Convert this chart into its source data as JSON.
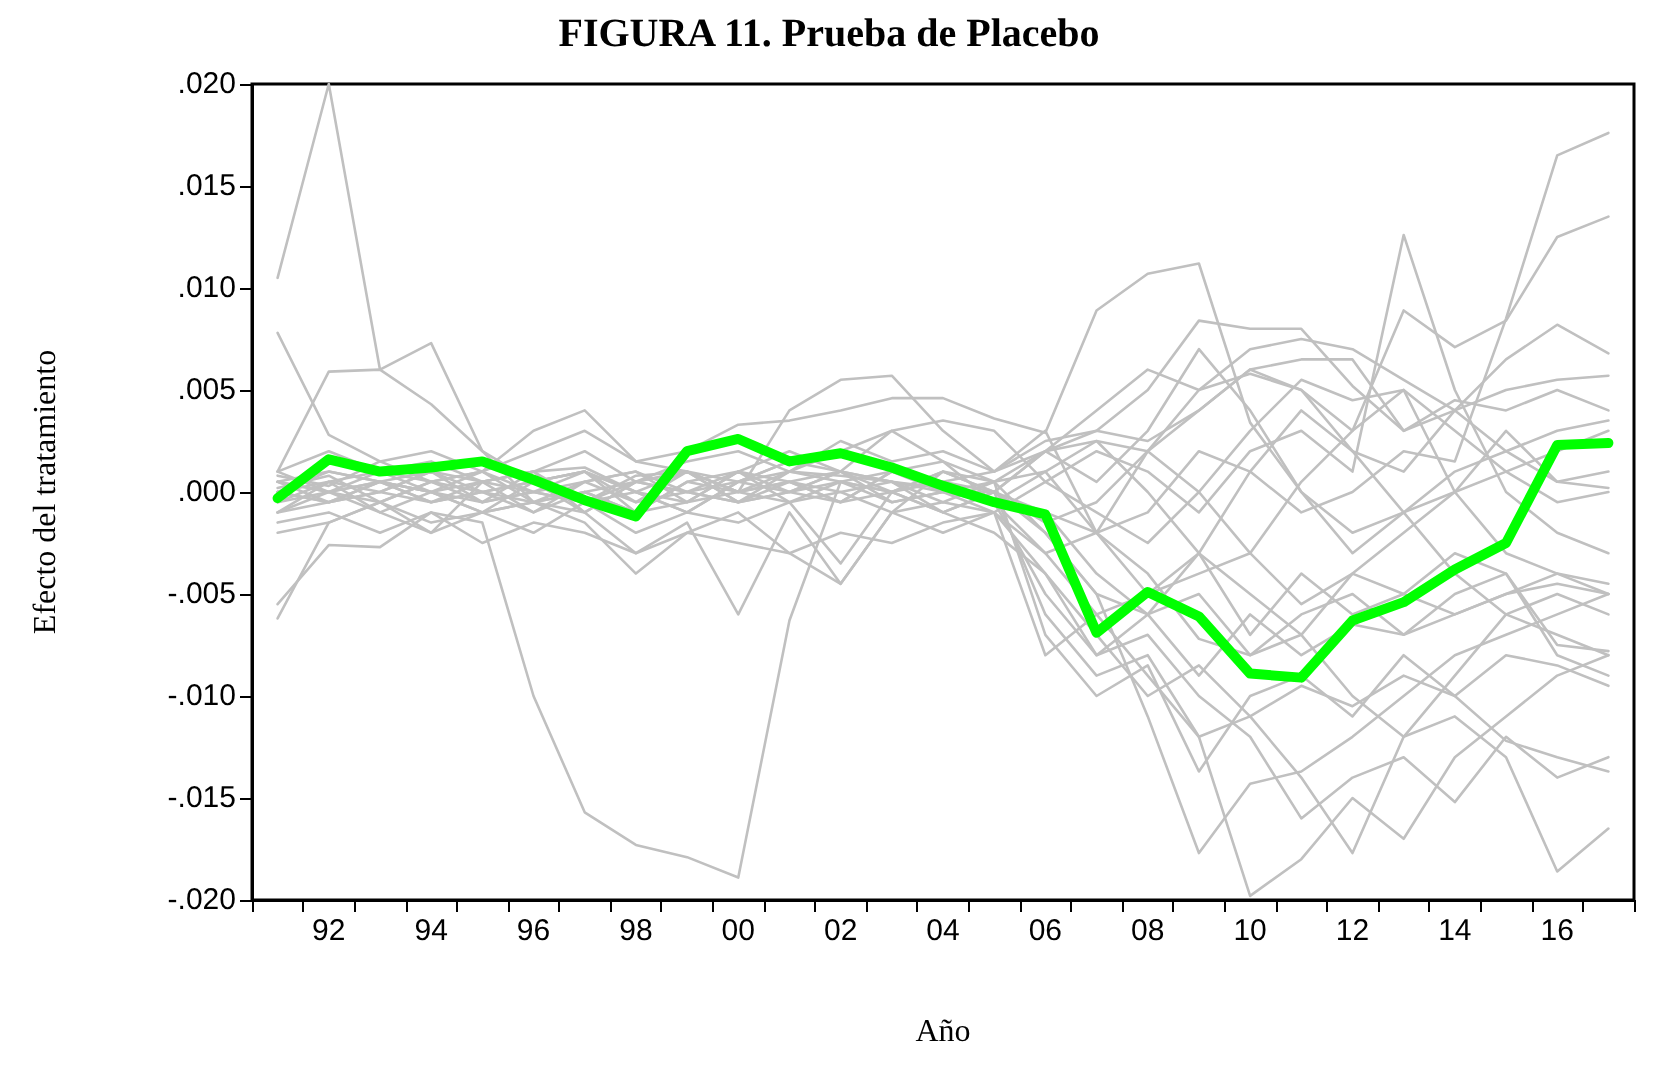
{
  "chart_data": {
    "type": "line",
    "title": "FIGURA 11. Prueba de Placebo",
    "xlabel": "Año",
    "ylabel": "Efecto del tratamiento",
    "categories": [
      null,
      "92",
      null,
      "94",
      null,
      "96",
      null,
      "98",
      null,
      "00",
      null,
      "02",
      null,
      "04",
      null,
      "06",
      null,
      "08",
      null,
      "10",
      null,
      "12",
      null,
      "14",
      null,
      "16",
      null
    ],
    "ylim": [
      -0.02,
      0.02
    ],
    "yticks": [
      {
        "value": -0.02,
        "label": "-.020"
      },
      {
        "value": -0.015,
        "label": "-.015"
      },
      {
        "value": -0.01,
        "label": "-.010"
      },
      {
        "value": -0.005,
        "label": "-.005"
      },
      {
        "value": 0,
        "label": ".000"
      },
      {
        "value": 0.005,
        "label": ".005"
      },
      {
        "value": 0.01,
        "label": ".010"
      },
      {
        "value": 0.015,
        "label": ".015"
      },
      {
        "value": 0.02,
        "label": ".020"
      }
    ],
    "grid": false,
    "marker": "none",
    "line_style": "solid",
    "series": [
      {
        "color": "#c0c0c0",
        "values": [
          0.0105,
          0.02,
          0.006,
          0.0073,
          0.002,
          0.0005,
          0.001,
          -0.0005,
          0.0,
          0.0005,
          0.001,
          0.0008,
          0.0005,
          0.0002,
          -0.0005,
          -0.001,
          -0.002,
          -0.004,
          -0.0072,
          -0.008,
          -0.006,
          -0.005,
          -0.007,
          -0.006,
          -0.005,
          -0.004,
          -0.0045
        ]
      },
      {
        "color": "#c0c0c0",
        "values": [
          0.0078,
          0.0028,
          0.0015,
          0.0005,
          -0.0005,
          0.001,
          0.0012,
          0.0,
          -0.001,
          0.0005,
          0.0015,
          0.001,
          0.003,
          0.0015,
          -0.0005,
          0.001,
          0.0025,
          0.002,
          0.005,
          0.0058,
          0.005,
          0.002,
          0.001,
          0.004,
          0.005,
          0.0055,
          0.0057
        ]
      },
      {
        "color": "#c0c0c0",
        "values": [
          0.001,
          0.0059,
          0.006,
          0.0043,
          0.002,
          -0.0005,
          -0.001,
          0.0005,
          0.001,
          0.0,
          0.004,
          0.0055,
          0.0057,
          0.003,
          0.001,
          0.002,
          0.0005,
          0.003,
          0.007,
          0.004,
          0.0,
          -0.003,
          -0.001,
          -0.004,
          -0.006,
          -0.007,
          -0.008
        ]
      },
      {
        "color": "#c0c0c0",
        "values": [
          -0.0055,
          -0.0026,
          -0.0027,
          -0.001,
          -0.0015,
          -0.01,
          -0.0157,
          -0.0173,
          -0.0179,
          -0.0189,
          -0.0063,
          0.0005,
          0.001,
          0.0015,
          0.0005,
          -0.002,
          -0.005,
          -0.006,
          -0.003,
          -0.005,
          -0.007,
          -0.004,
          -0.002,
          0.0,
          0.001,
          0.002,
          0.003
        ]
      },
      {
        "color": "#c0c0c0",
        "values": [
          -0.0062,
          -0.0015,
          -0.0005,
          -0.002,
          0.0005,
          0.001,
          -0.001,
          -0.003,
          -0.0015,
          -0.006,
          -0.001,
          -0.0045,
          -0.001,
          -0.002,
          -0.001,
          -0.004,
          -0.007,
          -0.01,
          -0.0085,
          -0.011,
          -0.0095,
          -0.0105,
          -0.009,
          -0.01,
          -0.008,
          -0.0085,
          -0.0095
        ]
      },
      {
        "color": "#c0c0c0",
        "values": [
          0.0005,
          0.001,
          0.0005,
          0.0,
          0.001,
          0.002,
          0.003,
          0.0015,
          0.002,
          0.0033,
          0.0035,
          0.004,
          0.0046,
          0.0046,
          0.0036,
          0.0029,
          0.0089,
          0.0107,
          0.0112,
          0.0034,
          0.0,
          -0.002,
          -0.001,
          0.001,
          0.002,
          0.003,
          0.0035
        ]
      },
      {
        "color": "#c0c0c0",
        "values": [
          0.0,
          -0.0005,
          0.0005,
          0.001,
          0.0,
          -0.001,
          0.0005,
          0.001,
          0.0,
          -0.0005,
          0.001,
          0.002,
          0.001,
          0.0005,
          0.0,
          0.002,
          0.003,
          0.005,
          0.0084,
          0.008,
          0.008,
          0.0052,
          0.003,
          0.004,
          0.002,
          0.0005,
          0.001
        ]
      },
      {
        "color": "#c0c0c0",
        "values": [
          0.0002,
          0.0008,
          -0.0005,
          0.0005,
          0.001,
          0.0,
          -0.0005,
          0.0008,
          0.001,
          0.0,
          0.0005,
          -0.0005,
          0.001,
          0.0,
          -0.001,
          0.0005,
          0.002,
          0.001,
          -0.001,
          0.002,
          0.003,
          0.001,
          0.0126,
          0.005,
          0.0,
          -0.002,
          -0.003
        ]
      },
      {
        "color": "#c0c0c0",
        "values": [
          -0.001,
          0.0,
          0.0005,
          -0.0005,
          0.0,
          0.0005,
          0.001,
          0.0,
          -0.001,
          0.0005,
          0.0,
          0.001,
          0.0005,
          -0.0005,
          0.0005,
          0.001,
          -0.002,
          -0.001,
          0.002,
          0.001,
          -0.001,
          0.0,
          0.002,
          0.0015,
          0.0085,
          0.0165,
          0.0176
        ]
      },
      {
        "color": "#c0c0c0",
        "values": [
          0.0005,
          -0.0005,
          0.0,
          0.001,
          0.0005,
          -0.001,
          0.0,
          0.0005,
          0.001,
          -0.0005,
          0.0005,
          0.0,
          -0.001,
          0.001,
          0.0,
          -0.0015,
          -0.0005,
          0.002,
          0.004,
          0.006,
          0.005,
          0.003,
          0.0089,
          0.0071,
          0.0084,
          0.0125,
          0.0135
        ]
      },
      {
        "color": "#c0c0c0",
        "values": [
          -0.0005,
          0.0005,
          0.001,
          0.0,
          -0.0005,
          0.0,
          0.001,
          -0.001,
          0.0005,
          0.0,
          -0.0005,
          0.0005,
          0.0,
          0.001,
          0.0005,
          0.002,
          0.004,
          0.006,
          0.005,
          0.007,
          0.0075,
          0.007,
          0.0055,
          0.004,
          0.0065,
          0.0082,
          0.0068
        ]
      },
      {
        "color": "#c0c0c0",
        "values": [
          0.0,
          0.0005,
          -0.001,
          0.0,
          0.0005,
          0.001,
          -0.0005,
          0.0,
          0.001,
          -0.0005,
          0.0,
          0.001,
          0.0005,
          0.0,
          -0.0005,
          -0.003,
          -0.006,
          -0.009,
          -0.012,
          -0.0198,
          -0.018,
          -0.015,
          -0.017,
          -0.013,
          -0.011,
          -0.009,
          -0.008
        ]
      },
      {
        "color": "#c0c0c0",
        "values": [
          0.001,
          0.0,
          0.0005,
          -0.0005,
          0.0,
          0.0005,
          -0.001,
          0.0005,
          0.0,
          0.001,
          -0.0005,
          0.0,
          0.0005,
          -0.001,
          0.0,
          -0.002,
          -0.005,
          -0.011,
          -0.0177,
          -0.0143,
          -0.0137,
          -0.012,
          -0.01,
          -0.008,
          -0.007,
          -0.006,
          -0.005
        ]
      },
      {
        "color": "#c0c0c0",
        "values": [
          -0.001,
          0.0005,
          0.0,
          0.001,
          -0.0005,
          0.0,
          0.0005,
          0.001,
          -0.0005,
          0.0,
          0.001,
          0.0005,
          0.0,
          -0.001,
          0.0,
          -0.001,
          -0.004,
          -0.006,
          -0.005,
          -0.008,
          -0.007,
          -0.01,
          -0.012,
          -0.011,
          -0.013,
          -0.0186,
          -0.0165
        ]
      },
      {
        "color": "#c0c0c0",
        "values": [
          0.0005,
          0.0,
          -0.0005,
          0.0005,
          0.001,
          -0.0005,
          0.0,
          -0.001,
          0.0005,
          0.001,
          0.0,
          -0.0005,
          0.001,
          0.0005,
          -0.0005,
          -0.005,
          -0.008,
          -0.007,
          -0.01,
          -0.012,
          -0.016,
          -0.014,
          -0.013,
          -0.0152,
          -0.012,
          -0.014,
          -0.013
        ]
      },
      {
        "color": "#c0c0c0",
        "values": [
          0.0,
          0.001,
          0.0005,
          0.0,
          -0.001,
          0.0005,
          0.001,
          0.0,
          -0.0005,
          0.001,
          0.0005,
          -0.0005,
          0.0,
          0.001,
          0.0,
          -0.006,
          -0.009,
          -0.008,
          -0.012,
          -0.011,
          -0.014,
          -0.0177,
          -0.012,
          -0.009,
          -0.006,
          -0.005,
          -0.006
        ]
      },
      {
        "color": "#c0c0c0",
        "values": [
          -0.0005,
          0.0,
          0.001,
          0.0005,
          0.0,
          -0.0005,
          0.0005,
          -0.0005,
          0.001,
          0.0,
          0.0005,
          0.001,
          -0.0005,
          0.0,
          0.0005,
          -0.007,
          -0.01,
          -0.0085,
          -0.0137,
          -0.01,
          -0.009,
          -0.011,
          -0.008,
          -0.01,
          -0.0122,
          -0.013,
          -0.0137
        ]
      },
      {
        "color": "#c0c0c0",
        "values": [
          0.001,
          0.002,
          0.001,
          0.0015,
          0.0005,
          0.001,
          0.002,
          0.0005,
          0.0015,
          0.002,
          0.001,
          0.0025,
          0.0015,
          0.002,
          0.001,
          0.0025,
          0.003,
          0.0025,
          0.004,
          0.006,
          0.0065,
          0.0065,
          0.003,
          0.0045,
          0.004,
          0.005,
          0.004
        ]
      },
      {
        "color": "#c0c0c0",
        "values": [
          -0.0015,
          -0.001,
          -0.002,
          -0.001,
          -0.0025,
          -0.0015,
          -0.002,
          -0.003,
          -0.002,
          -0.0025,
          -0.003,
          -0.002,
          -0.0025,
          -0.0015,
          -0.001,
          -0.003,
          -0.002,
          -0.005,
          -0.004,
          -0.003,
          -0.0055,
          -0.004,
          -0.005,
          -0.006,
          -0.005,
          -0.0045,
          -0.005
        ]
      },
      {
        "color": "#c0c0c0",
        "values": [
          0.0,
          -0.0005,
          0.0,
          -0.0005,
          0.0005,
          0.0,
          -0.0005,
          0.0005,
          0.0,
          -0.0005,
          0.0,
          0.0005,
          -0.0005,
          0.0,
          0.0,
          0.002,
          0.0025,
          0.0,
          -0.003,
          0.001,
          0.004,
          0.002,
          -0.001,
          0.0,
          0.003,
          0.0005,
          0.0002
        ]
      },
      {
        "color": "#c0c0c0",
        "values": [
          0.0005,
          0.0,
          -0.001,
          -0.002,
          -0.001,
          -0.0005,
          -0.0015,
          -0.004,
          -0.002,
          -0.001,
          -0.003,
          -0.0045,
          -0.001,
          -0.0005,
          -0.001,
          -0.008,
          -0.006,
          -0.005,
          -0.003,
          -0.007,
          -0.004,
          -0.006,
          -0.005,
          -0.003,
          -0.004,
          -0.0075,
          -0.0078
        ]
      },
      {
        "color": "#c0c0c0",
        "values": [
          -0.001,
          -0.0005,
          0.0005,
          0.0,
          -0.001,
          -0.0005,
          0.0,
          -0.001,
          -0.0005,
          0.001,
          0.002,
          0.001,
          0.0,
          0.0005,
          0.001,
          0.003,
          -0.002,
          0.002,
          0.0,
          -0.003,
          0.0005,
          0.003,
          0.005,
          0.0,
          -0.003,
          -0.004,
          -0.005
        ]
      },
      {
        "color": "#c0c0c0",
        "values": [
          0.0008,
          0.0003,
          0.0015,
          0.002,
          0.001,
          0.003,
          0.004,
          0.0015,
          0.001,
          0.0005,
          0.0015,
          0.002,
          0.003,
          0.0035,
          0.003,
          0.0005,
          -0.001,
          -0.0025,
          0.0,
          0.003,
          0.0055,
          0.0045,
          0.005,
          0.003,
          0.001,
          -0.0005,
          0.0
        ]
      },
      {
        "color": "#c0c0c0",
        "values": [
          -0.002,
          -0.0015,
          -0.0005,
          -0.0015,
          -0.001,
          -0.002,
          -0.0005,
          -0.002,
          -0.001,
          -0.0015,
          -0.0005,
          -0.0035,
          0.0,
          -0.001,
          -0.002,
          -0.004,
          -0.008,
          -0.006,
          -0.009,
          -0.006,
          -0.008,
          -0.0065,
          -0.007,
          -0.005,
          -0.004,
          -0.008,
          -0.009
        ]
      },
      {
        "color": "#00ff00",
        "values": [
          -0.0003,
          0.0016,
          0.001,
          0.0012,
          0.0015,
          0.0006,
          -0.0004,
          -0.0012,
          0.002,
          0.0026,
          0.0015,
          0.0019,
          0.0012,
          0.0003,
          -0.0005,
          -0.0011,
          -0.0069,
          -0.0049,
          -0.0061,
          -0.0089,
          -0.0091,
          -0.0063,
          -0.0054,
          -0.0038,
          -0.0025,
          0.0023,
          0.0024
        ]
      }
    ]
  }
}
